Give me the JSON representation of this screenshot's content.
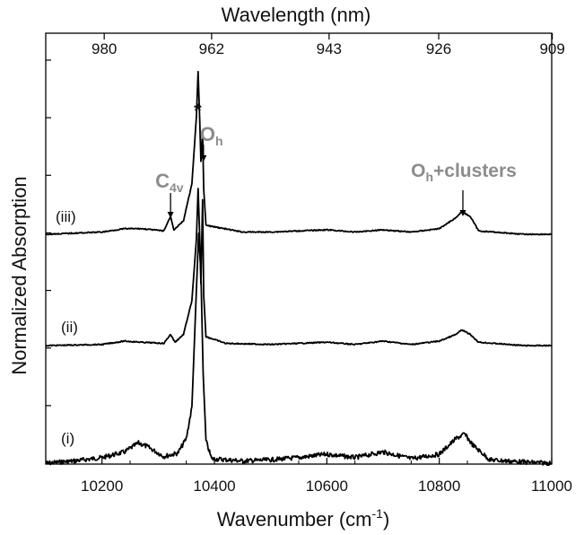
{
  "chart_data": {
    "type": "line",
    "title": "",
    "xlabel_bottom": "Wavenumber (cm",
    "xlabel_bottom_sup": "-1",
    "xlabel_bottom_end": ")",
    "xlabel_top": "Wavelength (nm)",
    "ylabel": "Normalized Absorption",
    "xlim": [
      10100,
      11000
    ],
    "x_ticks_bottom": [
      10200,
      10400,
      10600,
      10800,
      11000
    ],
    "x_ticks_top": [
      {
        "label": "980",
        "wavenumber": 10204
      },
      {
        "label": "962",
        "wavenumber": 10395
      },
      {
        "label": "943",
        "wavenumber": 10604
      },
      {
        "label": "926",
        "wavenumber": 10799
      },
      {
        "label": "909",
        "wavenumber": 11001
      }
    ],
    "y_tick_count": 8,
    "grid": false,
    "series": [
      {
        "name": "(i)",
        "points": [
          [
            10100,
            0.0
          ],
          [
            10150,
            0.02
          ],
          [
            10200,
            0.05
          ],
          [
            10240,
            0.1
          ],
          [
            10265,
            0.18
          ],
          [
            10280,
            0.15
          ],
          [
            10310,
            0.06
          ],
          [
            10335,
            0.09
          ],
          [
            10350,
            0.22
          ],
          [
            10360,
            0.5
          ],
          [
            10368,
            1.55
          ],
          [
            10372,
            2.05
          ],
          [
            10376,
            1.7
          ],
          [
            10380,
            0.8
          ],
          [
            10385,
            0.2
          ],
          [
            10395,
            0.04
          ],
          [
            10450,
            0.02
          ],
          [
            10500,
            0.03
          ],
          [
            10550,
            0.05
          ],
          [
            10600,
            0.08
          ],
          [
            10650,
            0.05
          ],
          [
            10700,
            0.1
          ],
          [
            10750,
            0.04
          ],
          [
            10800,
            0.08
          ],
          [
            10830,
            0.22
          ],
          [
            10845,
            0.26
          ],
          [
            10860,
            0.16
          ],
          [
            10890,
            0.03
          ],
          [
            10950,
            0.01
          ],
          [
            11000,
            0.0
          ]
        ]
      },
      {
        "name": "(ii)",
        "points": [
          [
            10100,
            0.0
          ],
          [
            10200,
            0.01
          ],
          [
            10240,
            0.04
          ],
          [
            10270,
            0.03
          ],
          [
            10310,
            0.02
          ],
          [
            10322,
            0.1
          ],
          [
            10330,
            0.03
          ],
          [
            10345,
            0.1
          ],
          [
            10360,
            0.4
          ],
          [
            10368,
            0.95
          ],
          [
            10371,
            1.4
          ],
          [
            10374,
            0.95
          ],
          [
            10376,
            0.55
          ],
          [
            10379,
            1.3
          ],
          [
            10381,
            0.45
          ],
          [
            10385,
            0.08
          ],
          [
            10420,
            0.02
          ],
          [
            10500,
            0.01
          ],
          [
            10600,
            0.03
          ],
          [
            10650,
            0.01
          ],
          [
            10700,
            0.04
          ],
          [
            10750,
            0.01
          ],
          [
            10800,
            0.04
          ],
          [
            10830,
            0.1
          ],
          [
            10840,
            0.14
          ],
          [
            10855,
            0.1
          ],
          [
            10870,
            0.03
          ],
          [
            10950,
            0.0
          ],
          [
            11000,
            0.0
          ]
        ]
      },
      {
        "name": "(iii)",
        "points": [
          [
            10100,
            0.0
          ],
          [
            10200,
            0.02
          ],
          [
            10240,
            0.05
          ],
          [
            10270,
            0.05
          ],
          [
            10310,
            0.03
          ],
          [
            10322,
            0.16
          ],
          [
            10328,
            0.04
          ],
          [
            10345,
            0.12
          ],
          [
            10360,
            0.45
          ],
          [
            10368,
            1.05
          ],
          [
            10371,
            1.45
          ],
          [
            10374,
            1.0
          ],
          [
            10376,
            0.65
          ],
          [
            10379,
            0.9
          ],
          [
            10381,
            0.4
          ],
          [
            10385,
            0.08
          ],
          [
            10450,
            0.02
          ],
          [
            10500,
            0.02
          ],
          [
            10600,
            0.04
          ],
          [
            10650,
            0.02
          ],
          [
            10700,
            0.04
          ],
          [
            10750,
            0.02
          ],
          [
            10800,
            0.05
          ],
          [
            10830,
            0.15
          ],
          [
            10840,
            0.2
          ],
          [
            10855,
            0.16
          ],
          [
            10870,
            0.03
          ],
          [
            10950,
            0.0
          ],
          [
            11000,
            0.0
          ]
        ]
      }
    ],
    "annotations": [
      {
        "text": "*",
        "x": 10372
      },
      {
        "text": "O",
        "sub": "h",
        "x": 10379
      },
      {
        "text": "C",
        "sub": "4v",
        "x": 10322
      },
      {
        "text": "O",
        "sub": "h",
        "text_end": "+clusters",
        "x": 10842
      }
    ]
  },
  "colors": {
    "trace": "#000000",
    "annotation": "#8c8c8c",
    "axis": "#000000"
  }
}
